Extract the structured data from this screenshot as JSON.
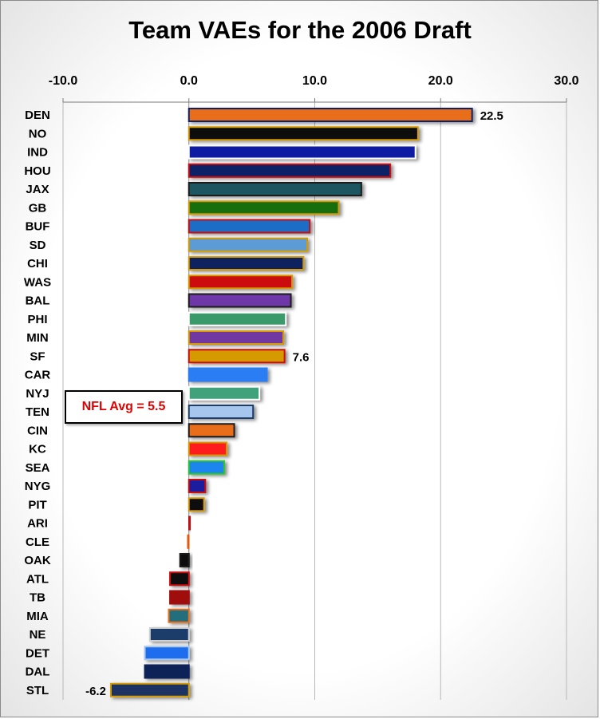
{
  "chart_data": {
    "type": "bar",
    "orientation": "horizontal",
    "title": "Team VAEs for the 2006 Draft",
    "xlim": [
      -10,
      30
    ],
    "xticks": [
      "-10.0",
      "0.0",
      "10.0",
      "20.0",
      "30.0"
    ],
    "xtick_values": [
      -10,
      0,
      10,
      20,
      30
    ],
    "grid": "vertical",
    "categories": [
      "DEN",
      "NO",
      "IND",
      "HOU",
      "JAX",
      "GB",
      "BUF",
      "SD",
      "CHI",
      "WAS",
      "BAL",
      "PHI",
      "MIN",
      "SF",
      "CAR",
      "NYJ",
      "TEN",
      "CIN",
      "KC",
      "SEA",
      "NYG",
      "PIT",
      "ARI",
      "CLE",
      "OAK",
      "ATL",
      "TB",
      "MIA",
      "NE",
      "DET",
      "DAL",
      "STL"
    ],
    "values": [
      22.5,
      18.2,
      18.0,
      16.0,
      13.7,
      11.9,
      9.6,
      9.4,
      9.1,
      8.2,
      8.1,
      7.7,
      7.5,
      7.6,
      6.2,
      5.6,
      5.1,
      3.6,
      3.0,
      2.8,
      1.3,
      1.2,
      0.1,
      -0.1,
      -0.7,
      -1.5,
      -1.5,
      -1.6,
      -3.1,
      -3.5,
      -3.5,
      -6.2
    ],
    "bar_fills": [
      "#E86E1A",
      "#080808",
      "#0A1BA2",
      "#0E2466",
      "#1D5761",
      "#166E10",
      "#1E6DC6",
      "#5C9BD6",
      "#11235E",
      "#CC0808",
      "#6E37A8",
      "#3A9A6B",
      "#7239A2",
      "#D49A06",
      "#2A7DF2",
      "#3FA27A",
      "#A7C6EE",
      "#E86E1A",
      "#FF1A1A",
      "#1E86EE",
      "#1A1A9E",
      "#0A0A0A",
      "#C01010",
      "#E05A10",
      "#0A0A0A",
      "#0A0A0A",
      "#A00A0A",
      "#246E7D",
      "#1E3C6A",
      "#1E6EEE",
      "#0F2357",
      "#1A3062"
    ],
    "bar_borders": [
      "#0E2466",
      "#D49A06",
      "#FFFFFF",
      "#CC0808",
      "#1A1A1A",
      "#D49A06",
      "#CC0808",
      "#D49A06",
      "#D49A06",
      "#D49A06",
      "#1A1A1A",
      "#FFFFFF",
      "#D49A06",
      "#CC0808",
      "#2A7DF2",
      "#FFFFFF",
      "#1E3C6A",
      "#1A1A1A",
      "#D49A06",
      "#2CC52C",
      "#CC0808",
      "#D49A06",
      "#C01010",
      "#E05A10",
      "#1A1A1A",
      "#CC0808",
      "#A00A0A",
      "#E86E1A",
      "#D0D0D0",
      "#A7C6EE",
      "#0F2357",
      "#D49A06"
    ],
    "data_labels": [
      {
        "category": "DEN",
        "text": "22.5"
      },
      {
        "category": "SF",
        "text": "7.6"
      },
      {
        "category": "STL",
        "text": "-6.2"
      }
    ],
    "annotation": "NFL Avg = 5.5"
  }
}
